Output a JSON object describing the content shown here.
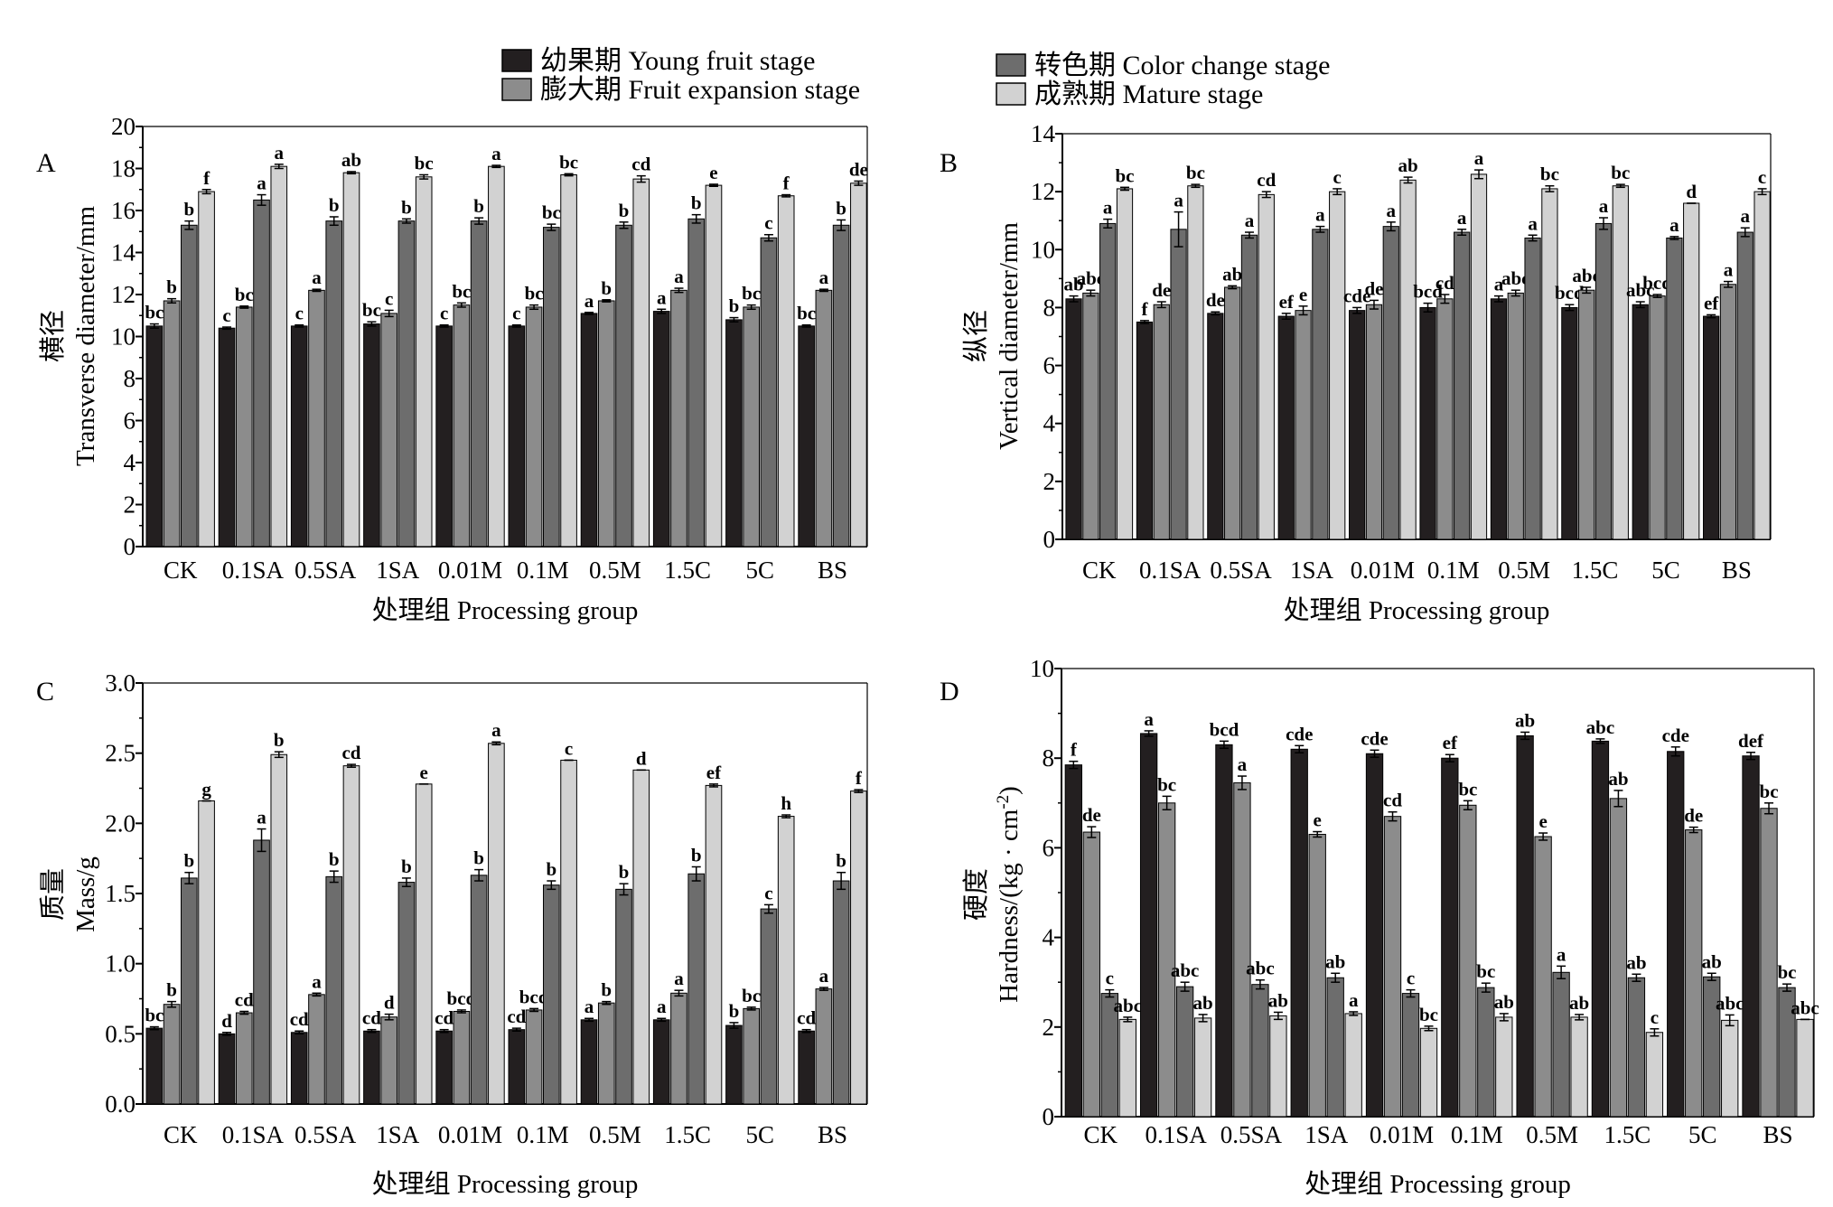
{
  "legend": [
    {
      "label": "幼果期 Young fruit stage",
      "color": "#231f20"
    },
    {
      "label": "膨大期 Fruit expansion stage",
      "color": "#8c8c8c"
    },
    {
      "label": "转色期 Color change stage",
      "color": "#6d6d6d"
    },
    {
      "label": "成熟期 Mature stage",
      "color": "#d2d2d2"
    }
  ],
  "chart_data": [
    {
      "type": "bar",
      "panel": "A",
      "xlabel": "处理组 Processing group",
      "ylabel_cn": "横径",
      "ylabel": "Transverse diameter/mm",
      "ylim": [
        0,
        20
      ],
      "yticks": [
        0,
        2,
        4,
        6,
        8,
        10,
        12,
        14,
        16,
        18,
        20
      ],
      "categories": [
        "CK",
        "0.1SA",
        "0.5SA",
        "1SA",
        "0.01M",
        "0.1M",
        "0.5M",
        "1.5C",
        "5C",
        "BS"
      ],
      "series": [
        {
          "name": "幼果期 Young fruit stage",
          "values": [
            10.5,
            10.4,
            10.5,
            10.6,
            10.5,
            10.5,
            11.1,
            11.2,
            10.8,
            10.5
          ],
          "err": [
            0.1,
            0.05,
            0.05,
            0.1,
            0.05,
            0.05,
            0.05,
            0.1,
            0.1,
            0.05
          ],
          "labels": [
            "bc",
            "c",
            "c",
            "bc",
            "c",
            "c",
            "a",
            "a",
            "b",
            "bc"
          ]
        },
        {
          "name": "膨大期 Fruit expansion stage",
          "values": [
            11.7,
            11.4,
            12.2,
            11.1,
            11.5,
            11.4,
            11.7,
            12.2,
            11.4,
            12.2
          ],
          "err": [
            0.1,
            0.05,
            0.05,
            0.15,
            0.1,
            0.1,
            0.05,
            0.1,
            0.1,
            0.05
          ],
          "labels": [
            "b",
            "bc",
            "a",
            "c",
            "bc",
            "bc",
            "b",
            "a",
            "bc",
            "a"
          ]
        },
        {
          "name": "转色期 Color change stage",
          "values": [
            15.3,
            16.5,
            15.5,
            15.5,
            15.5,
            15.2,
            15.3,
            15.6,
            14.7,
            15.3
          ],
          "err": [
            0.2,
            0.25,
            0.2,
            0.1,
            0.15,
            0.15,
            0.15,
            0.2,
            0.15,
            0.25
          ],
          "labels": [
            "b",
            "a",
            "b",
            "b",
            "b",
            "bc",
            "b",
            "b",
            "c",
            "b"
          ]
        },
        {
          "name": "成熟期 Mature stage",
          "values": [
            16.9,
            18.1,
            17.8,
            17.6,
            18.1,
            17.7,
            17.5,
            17.2,
            16.7,
            17.3
          ],
          "err": [
            0.1,
            0.1,
            0.05,
            0.1,
            0.05,
            0.05,
            0.15,
            0.05,
            0.05,
            0.1
          ],
          "labels": [
            "f",
            "a",
            "ab",
            "bc",
            "a",
            "bc",
            "cd",
            "e",
            "f",
            "de"
          ]
        }
      ]
    },
    {
      "type": "bar",
      "panel": "B",
      "xlabel": "处理组 Processing group",
      "ylabel_cn": "纵径",
      "ylabel": "Vertical diameter/mm",
      "ylim": [
        0,
        14
      ],
      "yticks": [
        0,
        2,
        4,
        6,
        8,
        10,
        12,
        14
      ],
      "categories": [
        "CK",
        "0.1SA",
        "0.5SA",
        "1SA",
        "0.01M",
        "0.1M",
        "0.5M",
        "1.5C",
        "5C",
        "BS"
      ],
      "series": [
        {
          "name": "幼果期 Young fruit stage",
          "values": [
            8.3,
            7.5,
            7.8,
            7.7,
            7.9,
            8.0,
            8.3,
            8.0,
            8.1,
            7.7
          ],
          "err": [
            0.1,
            0.05,
            0.05,
            0.1,
            0.1,
            0.15,
            0.1,
            0.1,
            0.1,
            0.05
          ],
          "labels": [
            "ab",
            "f",
            "de",
            "ef",
            "cde",
            "bcd",
            "a",
            "bcd",
            "abc",
            "ef"
          ]
        },
        {
          "name": "膨大期 Fruit expansion stage",
          "values": [
            8.5,
            8.1,
            8.7,
            7.9,
            8.1,
            8.3,
            8.5,
            8.6,
            8.4,
            8.8
          ],
          "err": [
            0.1,
            0.1,
            0.05,
            0.15,
            0.15,
            0.15,
            0.1,
            0.1,
            0.05,
            0.1
          ],
          "labels": [
            "abc",
            "de",
            "ab",
            "e",
            "de",
            "cd",
            "abc",
            "abc",
            "bcd",
            "a"
          ]
        },
        {
          "name": "转色期 Color change stage",
          "values": [
            10.9,
            10.7,
            10.5,
            10.7,
            10.8,
            10.6,
            10.4,
            10.9,
            10.4,
            10.6
          ],
          "err": [
            0.15,
            0.6,
            0.1,
            0.1,
            0.15,
            0.1,
            0.1,
            0.2,
            0.05,
            0.15
          ],
          "labels": [
            "a",
            "a",
            "a",
            "a",
            "a",
            "a",
            "a",
            "a",
            "a",
            "a"
          ]
        },
        {
          "name": "成熟期 Mature stage",
          "values": [
            12.1,
            12.2,
            11.9,
            12.0,
            12.4,
            12.6,
            12.1,
            12.2,
            11.6,
            12.0
          ],
          "err": [
            0.05,
            0.05,
            0.1,
            0.1,
            0.1,
            0.15,
            0.1,
            0.05,
            0.0,
            0.1
          ],
          "labels": [
            "bc",
            "bc",
            "cd",
            "c",
            "ab",
            "a",
            "bc",
            "bc",
            "d",
            "c"
          ]
        }
      ]
    },
    {
      "type": "bar",
      "panel": "C",
      "xlabel": "处理组 Processing group",
      "ylabel_cn": "质量",
      "ylabel": "Mass/g",
      "ylim": [
        0,
        3.0
      ],
      "yticks": [
        0.0,
        0.5,
        1.0,
        1.5,
        2.0,
        2.5,
        3.0
      ],
      "categories": [
        "CK",
        "0.1SA",
        "0.5SA",
        "1SA",
        "0.01M",
        "0.1M",
        "0.5M",
        "1.5C",
        "5C",
        "BS"
      ],
      "series": [
        {
          "name": "幼果期 Young fruit stage",
          "values": [
            0.54,
            0.5,
            0.51,
            0.52,
            0.52,
            0.53,
            0.6,
            0.6,
            0.56,
            0.52
          ],
          "err": [
            0.01,
            0.01,
            0.01,
            0.01,
            0.01,
            0.01,
            0.01,
            0.01,
            0.02,
            0.01
          ],
          "labels": [
            "bc",
            "d",
            "cd",
            "cd",
            "cd",
            "cd",
            "a",
            "a",
            "b",
            "cd"
          ]
        },
        {
          "name": "膨大期 Fruit expansion stage",
          "values": [
            0.71,
            0.65,
            0.78,
            0.62,
            0.66,
            0.67,
            0.72,
            0.79,
            0.68,
            0.82
          ],
          "err": [
            0.02,
            0.01,
            0.01,
            0.02,
            0.01,
            0.01,
            0.01,
            0.02,
            0.01,
            0.01
          ],
          "labels": [
            "b",
            "cd",
            "a",
            "d",
            "bcd",
            "bcd",
            "b",
            "a",
            "bc",
            "a"
          ]
        },
        {
          "name": "转色期 Color change stage",
          "values": [
            1.61,
            1.88,
            1.62,
            1.58,
            1.63,
            1.56,
            1.53,
            1.64,
            1.39,
            1.59
          ],
          "err": [
            0.04,
            0.08,
            0.04,
            0.03,
            0.04,
            0.03,
            0.04,
            0.05,
            0.03,
            0.06
          ],
          "labels": [
            "b",
            "a",
            "b",
            "b",
            "b",
            "b",
            "b",
            "b",
            "c",
            "b"
          ]
        },
        {
          "name": "成熟期 Mature stage",
          "values": [
            2.16,
            2.49,
            2.41,
            2.28,
            2.57,
            2.45,
            2.38,
            2.27,
            2.05,
            2.23
          ],
          "err": [
            0.0,
            0.02,
            0.01,
            0.0,
            0.01,
            0.0,
            0.0,
            0.01,
            0.01,
            0.01
          ],
          "labels": [
            "g",
            "b",
            "cd",
            "e",
            "a",
            "c",
            "d",
            "ef",
            "h",
            "f"
          ]
        }
      ]
    },
    {
      "type": "bar",
      "panel": "D",
      "xlabel": "处理组 Processing group",
      "ylabel_cn": "硬度",
      "ylabel": "Hardness/(kg · cm",
      "ylabel_sup": "-2",
      "ylabel_end": ")",
      "ylim": [
        0,
        10
      ],
      "yticks": [
        0,
        2,
        4,
        6,
        8,
        10
      ],
      "categories": [
        "CK",
        "0.1SA",
        "0.5SA",
        "1SA",
        "0.01M",
        "0.1M",
        "0.5M",
        "1.5C",
        "5C",
        "BS"
      ],
      "series": [
        {
          "name": "幼果期 Young fruit stage",
          "values": [
            7.85,
            8.55,
            8.3,
            8.2,
            8.1,
            8.0,
            8.5,
            8.38,
            8.15,
            8.05
          ],
          "err": [
            0.08,
            0.06,
            0.08,
            0.08,
            0.08,
            0.08,
            0.08,
            0.05,
            0.1,
            0.08
          ],
          "labels": [
            "f",
            "a",
            "bcd",
            "cde",
            "cde",
            "ef",
            "ab",
            "abc",
            "cde",
            "def"
          ]
        },
        {
          "name": "膨大期 Fruit expansion stage",
          "values": [
            6.35,
            7.0,
            7.45,
            6.3,
            6.7,
            6.95,
            6.25,
            7.1,
            6.4,
            6.88
          ],
          "err": [
            0.12,
            0.15,
            0.15,
            0.06,
            0.1,
            0.1,
            0.08,
            0.18,
            0.06,
            0.12
          ],
          "labels": [
            "de",
            "bc",
            "a",
            "e",
            "cd",
            "bc",
            "e",
            "ab",
            "de",
            "bc"
          ]
        },
        {
          "name": "转色期 Color change stage",
          "values": [
            2.75,
            2.9,
            2.95,
            3.1,
            2.75,
            2.88,
            3.22,
            3.1,
            3.12,
            2.88
          ],
          "err": [
            0.08,
            0.1,
            0.1,
            0.1,
            0.08,
            0.1,
            0.14,
            0.08,
            0.08,
            0.08
          ],
          "labels": [
            "c",
            "abc",
            "abc",
            "ab",
            "c",
            "bc",
            "a",
            "ab",
            "ab",
            "bc"
          ]
        },
        {
          "name": "成熟期 Mature stage",
          "values": [
            2.17,
            2.2,
            2.25,
            2.3,
            1.97,
            2.22,
            2.22,
            1.88,
            2.15,
            2.17
          ],
          "err": [
            0.05,
            0.08,
            0.08,
            0.04,
            0.05,
            0.08,
            0.06,
            0.08,
            0.12,
            0.0
          ],
          "labels": [
            "abc",
            "ab",
            "ab",
            "a",
            "bc",
            "ab",
            "ab",
            "c",
            "abc",
            "abc"
          ]
        }
      ]
    }
  ]
}
